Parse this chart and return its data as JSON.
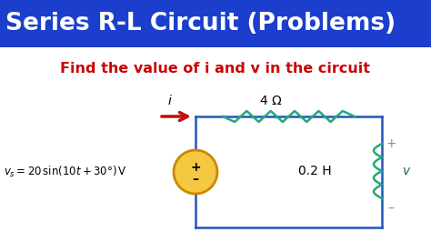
{
  "title": "Series R-L Circuit (Problems)",
  "title_bg": "#1B3FCC",
  "title_color": "#FFFFFF",
  "subtitle": "Find the value of i and v in the circuit",
  "subtitle_color": "#CC0000",
  "bg_color": "#FFFFFF",
  "circuit": {
    "wire_color": "#2255BB",
    "resistor_color": "#22AA77",
    "inductor_color": "#22AA77",
    "resistor_label": "4 Ω",
    "inductor_label": "0.2 H",
    "current_label": "i",
    "voltage_label": "v",
    "arrow_color": "#BB1111",
    "source_fill": "#F5C842",
    "source_edge": "#CC8800",
    "plus_minus_color": "#888888",
    "v_label_color": "#226633"
  }
}
